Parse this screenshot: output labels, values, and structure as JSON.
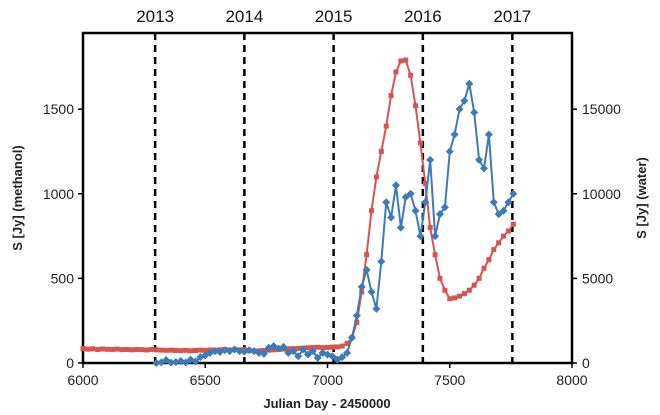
{
  "chart_data": {
    "type": "scatter",
    "title": "",
    "xlabel": "Julian Day - 2450000",
    "ylabel_left": "S [Jy] (methanol)",
    "ylabel_right": "S [Jy] (water)",
    "xlim": [
      6000,
      8000
    ],
    "ylim_left": [
      0,
      1950
    ],
    "ylim_right": [
      0,
      19500
    ],
    "xticks": [
      6000,
      6500,
      7000,
      7500,
      8000
    ],
    "yticks_left": [
      0,
      500,
      1000,
      1500
    ],
    "yticks_right": [
      0,
      5000,
      10000,
      15000
    ],
    "grid": false,
    "legend": "none",
    "year_markers": [
      {
        "label": "2013",
        "x": 6295
      },
      {
        "label": "2014",
        "x": 6660
      },
      {
        "label": "2015",
        "x": 7025
      },
      {
        "label": "2016",
        "x": 7390
      },
      {
        "label": "2017",
        "x": 7756
      }
    ],
    "series": [
      {
        "axis": "left",
        "marker": "square",
        "color": "#d9534f",
        "x": [
          6000,
          6020,
          6040,
          6060,
          6080,
          6100,
          6120,
          6140,
          6160,
          6180,
          6200,
          6220,
          6240,
          6260,
          6280,
          6300,
          6320,
          6340,
          6360,
          6380,
          6400,
          6420,
          6440,
          6460,
          6480,
          6500,
          6520,
          6540,
          6560,
          6580,
          6600,
          6620,
          6640,
          6660,
          6680,
          6700,
          6720,
          6740,
          6760,
          6780,
          6800,
          6820,
          6840,
          6860,
          6880,
          6900,
          6920,
          6940,
          6960,
          6980,
          7000,
          7020,
          7040,
          7060,
          7080,
          7100,
          7120,
          7140,
          7160,
          7180,
          7200,
          7220,
          7240,
          7260,
          7280,
          7300,
          7320,
          7340,
          7360,
          7380,
          7400,
          7420,
          7440,
          7460,
          7480,
          7500,
          7520,
          7540,
          7560,
          7580,
          7600,
          7620,
          7640,
          7660,
          7680,
          7700,
          7720,
          7740,
          7760
        ],
        "y": [
          85,
          82,
          84,
          80,
          83,
          81,
          80,
          82,
          79,
          80,
          78,
          80,
          79,
          77,
          80,
          78,
          76,
          75,
          76,
          74,
          73,
          75,
          72,
          74,
          76,
          75,
          77,
          76,
          78,
          80,
          77,
          79,
          78,
          80,
          75,
          70,
          72,
          74,
          76,
          78,
          80,
          82,
          84,
          85,
          86,
          88,
          90,
          92,
          93,
          91,
          92,
          94,
          95,
          100,
          115,
          150,
          240,
          420,
          640,
          900,
          1100,
          1250,
          1400,
          1580,
          1720,
          1785,
          1790,
          1700,
          1520,
          1300,
          1060,
          800,
          640,
          500,
          430,
          380,
          385,
          395,
          410,
          430,
          460,
          500,
          560,
          610,
          670,
          710,
          750,
          780,
          820
        ]
      },
      {
        "axis": "right",
        "marker": "diamond",
        "color": "#3d7ab8",
        "x": [
          6300,
          6320,
          6340,
          6360,
          6380,
          6400,
          6420,
          6440,
          6460,
          6480,
          6500,
          6520,
          6540,
          6560,
          6580,
          6600,
          6620,
          6640,
          6660,
          6680,
          6700,
          6720,
          6740,
          6760,
          6780,
          6800,
          6820,
          6840,
          6860,
          6880,
          6900,
          6920,
          6940,
          6960,
          6980,
          7000,
          7020,
          7040,
          7060,
          7080,
          7100,
          7120,
          7140,
          7160,
          7180,
          7200,
          7220,
          7240,
          7260,
          7280,
          7300,
          7320,
          7340,
          7360,
          7380,
          7400,
          7420,
          7440,
          7460,
          7480,
          7500,
          7520,
          7540,
          7560,
          7580,
          7600,
          7620,
          7640,
          7660,
          7680,
          7700,
          7720,
          7740,
          7760
        ],
        "y": [
          0,
          40,
          180,
          20,
          60,
          120,
          30,
          200,
          90,
          350,
          450,
          600,
          700,
          650,
          750,
          700,
          800,
          700,
          680,
          750,
          700,
          600,
          550,
          900,
          1000,
          850,
          950,
          600,
          700,
          400,
          800,
          500,
          700,
          300,
          600,
          500,
          400,
          200,
          350,
          600,
          1500,
          2800,
          4500,
          5500,
          4200,
          3200,
          6000,
          9500,
          8600,
          10500,
          8000,
          9800,
          10000,
          9000,
          7500,
          9500,
          12000,
          7500,
          8800,
          9200,
          12500,
          13500,
          15000,
          15500,
          16500,
          14800,
          12000,
          11500,
          13500,
          9500,
          8800,
          9000,
          9500,
          10000
        ]
      }
    ]
  }
}
